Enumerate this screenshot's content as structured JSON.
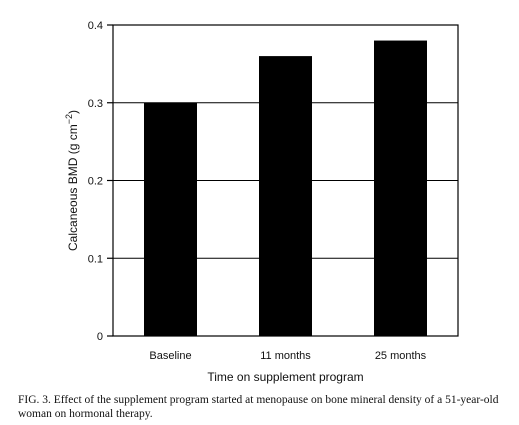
{
  "chart_data": {
    "type": "bar",
    "categories": [
      "Baseline",
      "11 months",
      "25 months"
    ],
    "values": [
      0.3,
      0.36,
      0.38
    ],
    "ylim": [
      0,
      0.4
    ],
    "yticks": [
      0,
      0.1,
      0.2,
      0.3,
      0.4
    ],
    "ytick_labels": [
      "0",
      "0.1",
      "0.2",
      "0.3",
      "0.4"
    ],
    "xlabel": "Time on supplement program",
    "ylabel_main": "Calcaneous BMD (g cm",
    "ylabel_sup": "−2",
    "ylabel_close": ")",
    "grid": true,
    "bar_color": "#000000"
  },
  "caption": "FIG. 3. Effect of the supplement program started at menopause on bone mineral density of a 51-year-old woman on hormonal therapy."
}
